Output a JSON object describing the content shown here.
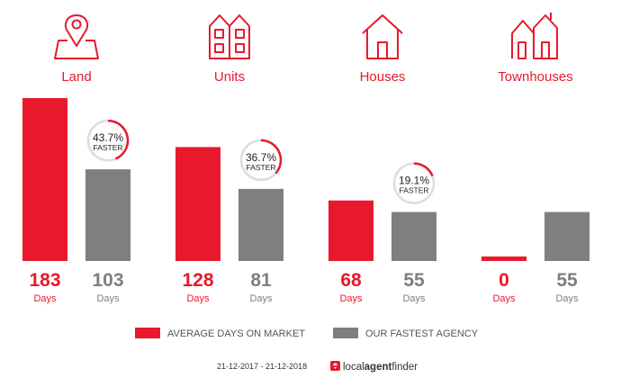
{
  "colors": {
    "primary": "#e8192c",
    "secondary": "#7f7f7f",
    "ring_track": "#dddddd"
  },
  "chart_data": {
    "type": "bar",
    "categories": [
      "Land",
      "Units",
      "Houses",
      "Townhouses"
    ],
    "icons": [
      "map-pin-icon",
      "units-building-icon",
      "house-icon",
      "townhouses-icon"
    ],
    "unit_label": "Days",
    "series": [
      {
        "name": "AVERAGE DAYS ON MARKET",
        "color": "#e8192c",
        "values": [
          183,
          128,
          68,
          0
        ]
      },
      {
        "name": "OUR FASTEST AGENCY",
        "color": "#7f7f7f",
        "values": [
          103,
          81,
          55,
          55
        ]
      }
    ],
    "ylim": [
      0,
      183
    ],
    "badges": [
      {
        "category": "Land",
        "percent": 43.7,
        "label": "43.7%",
        "word": "FASTER"
      },
      {
        "category": "Units",
        "percent": 36.7,
        "label": "36.7%",
        "word": "FASTER"
      },
      {
        "category": "Houses",
        "percent": 19.1,
        "label": "19.1%",
        "word": "FASTER"
      }
    ],
    "legend_position": "bottom-center"
  },
  "footer": {
    "date_range": "21-12-2017 - 21-12-2018",
    "brand_prefix": "local",
    "brand_bold": "agent",
    "brand_suffix": "finder"
  }
}
